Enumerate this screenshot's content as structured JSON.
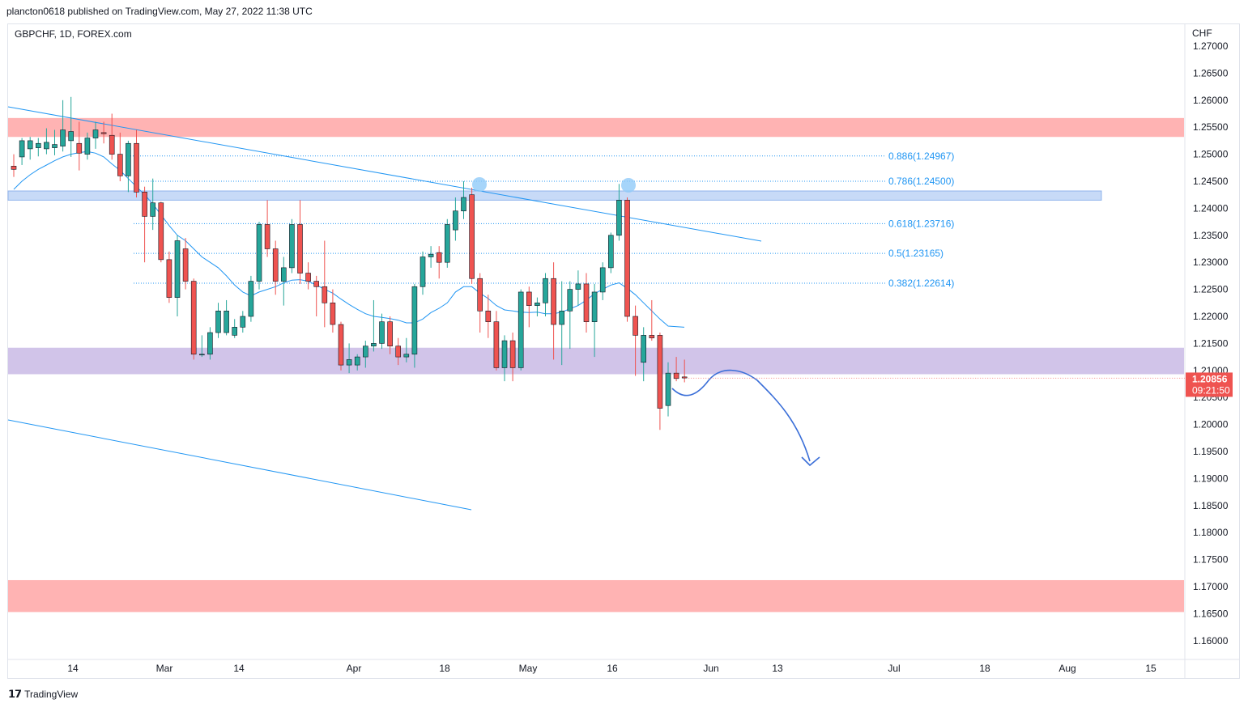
{
  "header": {
    "published": "plancton0618 published on TradingView.com, May 27, 2022 11:38 UTC"
  },
  "symbol": {
    "label": "GBPCHF, 1D, FOREX.com"
  },
  "footer": {
    "brand": "TradingView",
    "logo": "tradingview-logo-icon"
  },
  "colors": {
    "up": "#26a69a",
    "down": "#ef5350",
    "ma": "#2196f3",
    "resistance_zone": "#ffb3b3",
    "support_zone": "#d1c4e9",
    "blue_zone": "#c7daf7",
    "price_label": "#ef5350"
  },
  "chart_data": {
    "type": "candlestick",
    "symbol": "GBPCHF",
    "timeframe": "1D",
    "currency_label": "CHF",
    "ylim": [
      1.155,
      1.2735
    ],
    "y_ticks": [
      "1.27000",
      "1.26500",
      "1.26000",
      "1.25500",
      "1.25000",
      "1.24500",
      "1.24000",
      "1.23500",
      "1.23000",
      "1.22500",
      "1.22000",
      "1.21500",
      "1.21000",
      "1.20500",
      "1.20000",
      "1.19500",
      "1.19000",
      "1.18500",
      "1.18000",
      "1.17500",
      "1.17000",
      "1.16500",
      "1.16000"
    ],
    "x_ticks": [
      "14",
      "Mar",
      "14",
      "Apr",
      "18",
      "May",
      "16",
      "Jun",
      "13",
      "Jul",
      "18",
      "Aug",
      "15"
    ],
    "last_price": "1.20856",
    "countdown": "09:21:50",
    "candles": [
      {
        "o": 1.2478,
        "h": 1.25,
        "l": 1.2458,
        "c": 1.2472
      },
      {
        "o": 1.2495,
        "h": 1.253,
        "l": 1.248,
        "c": 1.2525
      },
      {
        "o": 1.251,
        "h": 1.2532,
        "l": 1.249,
        "c": 1.2525
      },
      {
        "o": 1.2512,
        "h": 1.253,
        "l": 1.2496,
        "c": 1.252
      },
      {
        "o": 1.251,
        "h": 1.2548,
        "l": 1.25,
        "c": 1.2522
      },
      {
        "o": 1.2512,
        "h": 1.2545,
        "l": 1.2498,
        "c": 1.2518
      },
      {
        "o": 1.2515,
        "h": 1.26,
        "l": 1.2505,
        "c": 1.2545
      },
      {
        "o": 1.2525,
        "h": 1.2606,
        "l": 1.2495,
        "c": 1.2542
      },
      {
        "o": 1.252,
        "h": 1.256,
        "l": 1.247,
        "c": 1.2502
      },
      {
        "o": 1.25,
        "h": 1.254,
        "l": 1.249,
        "c": 1.253
      },
      {
        "o": 1.253,
        "h": 1.256,
        "l": 1.251,
        "c": 1.2545
      },
      {
        "o": 1.254,
        "h": 1.256,
        "l": 1.252,
        "c": 1.2538
      },
      {
        "o": 1.2535,
        "h": 1.2575,
        "l": 1.249,
        "c": 1.25
      },
      {
        "o": 1.25,
        "h": 1.254,
        "l": 1.245,
        "c": 1.246
      },
      {
        "o": 1.246,
        "h": 1.2525,
        "l": 1.243,
        "c": 1.252
      },
      {
        "o": 1.252,
        "h": 1.2545,
        "l": 1.242,
        "c": 1.243
      },
      {
        "o": 1.243,
        "h": 1.244,
        "l": 1.23,
        "c": 1.2385
      },
      {
        "o": 1.2385,
        "h": 1.2455,
        "l": 1.236,
        "c": 1.241
      },
      {
        "o": 1.241,
        "h": 1.2412,
        "l": 1.23,
        "c": 1.2305
      },
      {
        "o": 1.2305,
        "h": 1.232,
        "l": 1.2225,
        "c": 1.2235
      },
      {
        "o": 1.2235,
        "h": 1.235,
        "l": 1.22,
        "c": 1.234
      },
      {
        "o": 1.2325,
        "h": 1.2345,
        "l": 1.225,
        "c": 1.2265
      },
      {
        "o": 1.2265,
        "h": 1.227,
        "l": 1.212,
        "c": 1.213
      },
      {
        "o": 1.213,
        "h": 1.2165,
        "l": 1.2125,
        "c": 1.213
      },
      {
        "o": 1.213,
        "h": 1.218,
        "l": 1.212,
        "c": 1.217
      },
      {
        "o": 1.217,
        "h": 1.2225,
        "l": 1.216,
        "c": 1.221
      },
      {
        "o": 1.217,
        "h": 1.223,
        "l": 1.2165,
        "c": 1.221
      },
      {
        "o": 1.2165,
        "h": 1.2195,
        "l": 1.216,
        "c": 1.218
      },
      {
        "o": 1.218,
        "h": 1.221,
        "l": 1.217,
        "c": 1.22
      },
      {
        "o": 1.22,
        "h": 1.2275,
        "l": 1.219,
        "c": 1.2265
      },
      {
        "o": 1.2265,
        "h": 1.2375,
        "l": 1.225,
        "c": 1.237
      },
      {
        "o": 1.237,
        "h": 1.2415,
        "l": 1.231,
        "c": 1.2325
      },
      {
        "o": 1.2325,
        "h": 1.234,
        "l": 1.224,
        "c": 1.2265
      },
      {
        "o": 1.2265,
        "h": 1.231,
        "l": 1.222,
        "c": 1.229
      },
      {
        "o": 1.229,
        "h": 1.238,
        "l": 1.228,
        "c": 1.237
      },
      {
        "o": 1.237,
        "h": 1.2415,
        "l": 1.226,
        "c": 1.228
      },
      {
        "o": 1.228,
        "h": 1.23,
        "l": 1.225,
        "c": 1.2265
      },
      {
        "o": 1.2265,
        "h": 1.2275,
        "l": 1.22,
        "c": 1.2255
      },
      {
        "o": 1.2255,
        "h": 1.234,
        "l": 1.218,
        "c": 1.2225
      },
      {
        "o": 1.2225,
        "h": 1.225,
        "l": 1.217,
        "c": 1.2185
      },
      {
        "o": 1.2185,
        "h": 1.219,
        "l": 1.21,
        "c": 1.211
      },
      {
        "o": 1.211,
        "h": 1.215,
        "l": 1.2095,
        "c": 1.212
      },
      {
        "o": 1.211,
        "h": 1.213,
        "l": 1.21,
        "c": 1.2125
      },
      {
        "o": 1.2125,
        "h": 1.2155,
        "l": 1.2105,
        "c": 1.2145
      },
      {
        "o": 1.2145,
        "h": 1.223,
        "l": 1.2135,
        "c": 1.215
      },
      {
        "o": 1.215,
        "h": 1.2205,
        "l": 1.214,
        "c": 1.219
      },
      {
        "o": 1.219,
        "h": 1.22,
        "l": 1.213,
        "c": 1.2145
      },
      {
        "o": 1.2145,
        "h": 1.216,
        "l": 1.211,
        "c": 1.2125
      },
      {
        "o": 1.2125,
        "h": 1.216,
        "l": 1.2115,
        "c": 1.213
      },
      {
        "o": 1.213,
        "h": 1.226,
        "l": 1.2105,
        "c": 1.2255
      },
      {
        "o": 1.2255,
        "h": 1.232,
        "l": 1.224,
        "c": 1.231
      },
      {
        "o": 1.231,
        "h": 1.233,
        "l": 1.229,
        "c": 1.2315
      },
      {
        "o": 1.2318,
        "h": 1.233,
        "l": 1.227,
        "c": 1.23
      },
      {
        "o": 1.23,
        "h": 1.238,
        "l": 1.229,
        "c": 1.237
      },
      {
        "o": 1.236,
        "h": 1.242,
        "l": 1.234,
        "c": 1.2395
      },
      {
        "o": 1.2395,
        "h": 1.245,
        "l": 1.238,
        "c": 1.242
      },
      {
        "o": 1.2425,
        "h": 1.2438,
        "l": 1.226,
        "c": 1.227
      },
      {
        "o": 1.227,
        "h": 1.228,
        "l": 1.217,
        "c": 1.221
      },
      {
        "o": 1.221,
        "h": 1.224,
        "l": 1.216,
        "c": 1.219
      },
      {
        "o": 1.219,
        "h": 1.221,
        "l": 1.21,
        "c": 1.2105
      },
      {
        "o": 1.2105,
        "h": 1.2165,
        "l": 1.208,
        "c": 1.2155
      },
      {
        "o": 1.2155,
        "h": 1.217,
        "l": 1.208,
        "c": 1.2105
      },
      {
        "o": 1.2105,
        "h": 1.225,
        "l": 1.21,
        "c": 1.2245
      },
      {
        "o": 1.2245,
        "h": 1.2255,
        "l": 1.218,
        "c": 1.222
      },
      {
        "o": 1.222,
        "h": 1.2235,
        "l": 1.22,
        "c": 1.2225
      },
      {
        "o": 1.2225,
        "h": 1.228,
        "l": 1.22,
        "c": 1.227
      },
      {
        "o": 1.227,
        "h": 1.23,
        "l": 1.212,
        "c": 1.2185
      },
      {
        "o": 1.2185,
        "h": 1.2265,
        "l": 1.211,
        "c": 1.221
      },
      {
        "o": 1.221,
        "h": 1.2265,
        "l": 1.214,
        "c": 1.225
      },
      {
        "o": 1.225,
        "h": 1.2285,
        "l": 1.222,
        "c": 1.226
      },
      {
        "o": 1.226,
        "h": 1.228,
        "l": 1.217,
        "c": 1.219
      },
      {
        "o": 1.219,
        "h": 1.226,
        "l": 1.2125,
        "c": 1.2245
      },
      {
        "o": 1.2245,
        "h": 1.23,
        "l": 1.223,
        "c": 1.229
      },
      {
        "o": 1.229,
        "h": 1.2355,
        "l": 1.228,
        "c": 1.235
      },
      {
        "o": 1.235,
        "h": 1.2445,
        "l": 1.234,
        "c": 1.2415
      },
      {
        "o": 1.2415,
        "h": 1.242,
        "l": 1.219,
        "c": 1.22
      },
      {
        "o": 1.22,
        "h": 1.222,
        "l": 1.209,
        "c": 1.2165
      },
      {
        "o": 1.2115,
        "h": 1.218,
        "l": 1.208,
        "c": 1.2165
      },
      {
        "o": 1.2165,
        "h": 1.223,
        "l": 1.2155,
        "c": 1.216
      },
      {
        "o": 1.2165,
        "h": 1.217,
        "l": 1.199,
        "c": 1.203
      },
      {
        "o": 1.2035,
        "h": 1.2115,
        "l": 1.2015,
        "c": 1.2095
      },
      {
        "o": 1.2095,
        "h": 1.2125,
        "l": 1.208,
        "c": 1.2085
      },
      {
        "o": 1.2088,
        "h": 1.212,
        "l": 1.2078,
        "c": 1.2086
      }
    ],
    "moving_average": {
      "values": [
        1.2435,
        1.245,
        1.2462,
        1.2472,
        1.248,
        1.2488,
        1.2495,
        1.25,
        1.2503,
        1.2505,
        1.2502,
        1.2495,
        1.2482,
        1.247,
        1.2455,
        1.244,
        1.2425,
        1.2408,
        1.2388,
        1.2368,
        1.235,
        1.234,
        1.2325,
        1.231,
        1.23,
        1.229,
        1.2275,
        1.2258,
        1.2245,
        1.2238,
        1.2245,
        1.225,
        1.2255,
        1.2262,
        1.2267,
        1.2268,
        1.2265,
        1.2258,
        1.225,
        1.2243,
        1.2232,
        1.2222,
        1.2213,
        1.2205,
        1.22,
        1.2198,
        1.2196,
        1.2193,
        1.2188,
        1.2188,
        1.2195,
        1.2207,
        1.2215,
        1.2225,
        1.2245,
        1.2255,
        1.2255,
        1.2243,
        1.2233,
        1.222,
        1.2212,
        1.221,
        1.2208,
        1.2207,
        1.2208,
        1.2205,
        1.2205,
        1.2208,
        1.2214,
        1.222,
        1.223,
        1.2242,
        1.225,
        1.2258,
        1.2262,
        1.2252,
        1.224,
        1.2225,
        1.221,
        1.2195,
        1.2182
      ]
    },
    "zones": [
      {
        "name": "resistance-zone",
        "from": 1.2532,
        "to": 1.2567
      },
      {
        "name": "blue-zone",
        "from": 1.2415,
        "to": 1.2432
      },
      {
        "name": "support-zone",
        "from": 1.2093,
        "to": 1.2142
      },
      {
        "name": "lower-zone",
        "from": 1.1653,
        "to": 1.1712
      }
    ],
    "fib_levels": [
      {
        "label": "0.886(1.24967)",
        "value": 1.24967
      },
      {
        "label": "0.786(1.24500)",
        "value": 1.245
      },
      {
        "label": "0.618(1.23716)",
        "value": 1.23716
      },
      {
        "label": "0.5(1.23165)",
        "value": 1.23165
      },
      {
        "label": "0.382(1.22614)",
        "value": 1.22614
      }
    ]
  }
}
